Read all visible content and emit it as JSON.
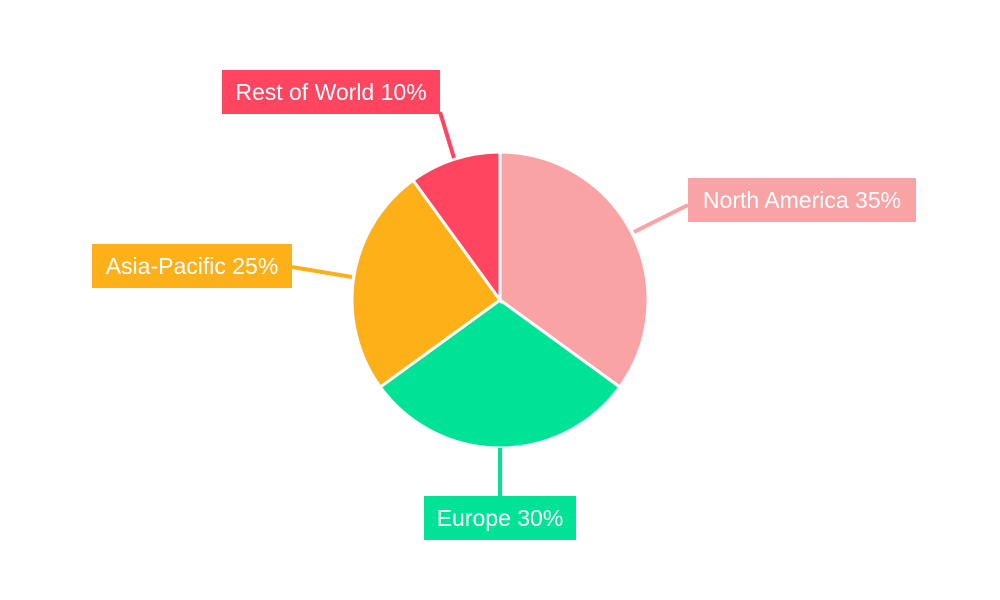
{
  "chart_data": {
    "type": "pie",
    "title": "",
    "start_angle": "top, clockwise",
    "slices": [
      {
        "label": "North America",
        "value": 35,
        "text": "North America 35%",
        "color": "#F9A3A4"
      },
      {
        "label": "Europe",
        "value": 30,
        "text": "Europe 30%",
        "color": "#00E396"
      },
      {
        "label": "Asia-Pacific",
        "value": 25,
        "text": "Asia-Pacific 25%",
        "color": "#FEB019"
      },
      {
        "label": "Rest of World",
        "value": 10,
        "text": "Rest of World 10%",
        "color": "#FF4560"
      }
    ]
  }
}
